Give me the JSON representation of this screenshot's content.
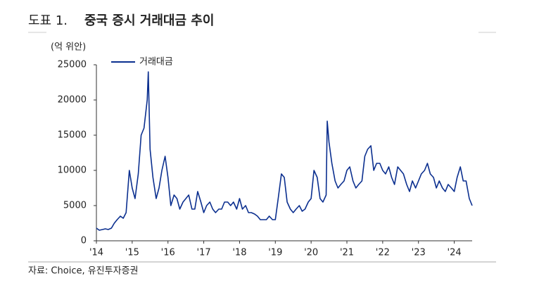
{
  "header": {
    "label": "도표 1.",
    "title": "중국 증시 거래대금 추이"
  },
  "footer": {
    "source": "자료: Choice, 유진투자증권"
  },
  "chart_data": {
    "type": "line",
    "y_axis_label": "(억 위안)",
    "x": [
      2014.0,
      2014.08,
      2014.17,
      2014.25,
      2014.33,
      2014.42,
      2014.5,
      2014.58,
      2014.67,
      2014.75,
      2014.83,
      2014.92,
      2015.0,
      2015.08,
      2015.17,
      2015.25,
      2015.33,
      2015.42,
      2015.45,
      2015.5,
      2015.58,
      2015.67,
      2015.75,
      2015.83,
      2015.92,
      2016.0,
      2016.08,
      2016.17,
      2016.25,
      2016.33,
      2016.42,
      2016.5,
      2016.58,
      2016.67,
      2016.75,
      2016.83,
      2016.92,
      2017.0,
      2017.08,
      2017.17,
      2017.25,
      2017.33,
      2017.42,
      2017.5,
      2017.58,
      2017.67,
      2017.75,
      2017.83,
      2017.92,
      2018.0,
      2018.08,
      2018.17,
      2018.25,
      2018.33,
      2018.42,
      2018.5,
      2018.58,
      2018.67,
      2018.75,
      2018.83,
      2018.92,
      2019.0,
      2019.08,
      2019.17,
      2019.25,
      2019.33,
      2019.42,
      2019.5,
      2019.58,
      2019.67,
      2019.75,
      2019.83,
      2019.92,
      2020.0,
      2020.08,
      2020.17,
      2020.25,
      2020.33,
      2020.42,
      2020.45,
      2020.5,
      2020.58,
      2020.67,
      2020.75,
      2020.83,
      2020.92,
      2021.0,
      2021.08,
      2021.17,
      2021.25,
      2021.33,
      2021.42,
      2021.5,
      2021.58,
      2021.67,
      2021.75,
      2021.83,
      2021.92,
      2022.0,
      2022.08,
      2022.17,
      2022.25,
      2022.33,
      2022.42,
      2022.5,
      2022.58,
      2022.67,
      2022.75,
      2022.83,
      2022.92,
      2023.0,
      2023.08,
      2023.17,
      2023.25,
      2023.33,
      2023.42,
      2023.5,
      2023.58,
      2023.67,
      2023.75,
      2023.83,
      2023.92,
      2024.0,
      2024.08,
      2024.17,
      2024.25,
      2024.33,
      2024.42,
      2024.5
    ],
    "series": [
      {
        "name": "거래대금",
        "color": "#0b2f8f",
        "values": [
          1800,
          1500,
          1600,
          1700,
          1600,
          1800,
          2500,
          3000,
          3500,
          3200,
          4000,
          10000,
          7500,
          6000,
          9500,
          15000,
          16000,
          20000,
          24000,
          13000,
          9000,
          6000,
          7500,
          10000,
          12000,
          9000,
          5000,
          6500,
          6000,
          4500,
          5500,
          6000,
          6500,
          4500,
          4500,
          7000,
          5500,
          4000,
          5000,
          5500,
          4500,
          4000,
          4500,
          4500,
          5500,
          5500,
          5000,
          5500,
          4500,
          6000,
          4500,
          5000,
          4000,
          4000,
          3800,
          3500,
          3000,
          3000,
          3000,
          3500,
          3000,
          3000,
          6000,
          9500,
          9000,
          5500,
          4500,
          4000,
          4500,
          5000,
          4200,
          4500,
          5500,
          6000,
          10000,
          9000,
          6000,
          5500,
          6500,
          17000,
          14000,
          11000,
          8500,
          7500,
          8000,
          8500,
          10000,
          10500,
          8500,
          7500,
          8000,
          8500,
          12000,
          13000,
          13500,
          10000,
          11000,
          11000,
          10000,
          9500,
          10500,
          9000,
          8000,
          10500,
          10000,
          9500,
          8000,
          7000,
          8500,
          7500,
          8500,
          9500,
          10000,
          11000,
          9500,
          9000,
          7500,
          8500,
          7500,
          7000,
          8000,
          7500,
          7000,
          9000,
          10500,
          8500,
          8500,
          6000,
          5000
        ]
      }
    ],
    "xlim": [
      2014,
      2024.5
    ],
    "xticks": [
      {
        "value": 2014,
        "label": "'14"
      },
      {
        "value": 2015,
        "label": "'15"
      },
      {
        "value": 2016,
        "label": "'16"
      },
      {
        "value": 2017,
        "label": "'17"
      },
      {
        "value": 2018,
        "label": "'18"
      },
      {
        "value": 2019,
        "label": "'19"
      },
      {
        "value": 2020,
        "label": "'20"
      },
      {
        "value": 2021,
        "label": "'21"
      },
      {
        "value": 2022,
        "label": "'22"
      },
      {
        "value": 2023,
        "label": "'23"
      },
      {
        "value": 2024,
        "label": "'24"
      }
    ],
    "ylim": [
      0,
      25000
    ],
    "yticks": [
      0,
      5000,
      10000,
      15000,
      20000,
      25000
    ]
  }
}
